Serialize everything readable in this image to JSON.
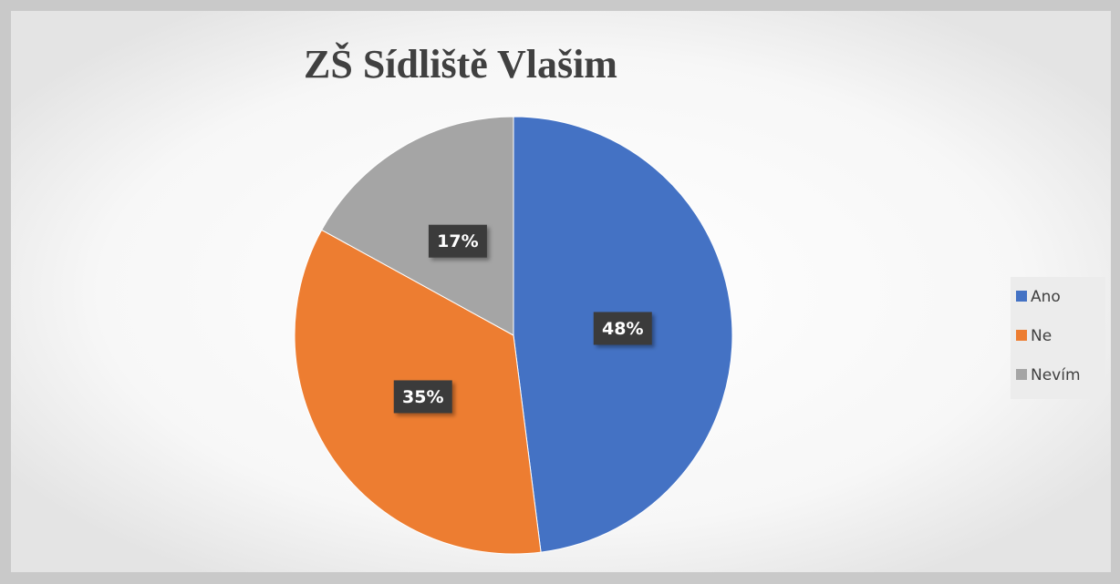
{
  "chart_data": {
    "type": "pie",
    "title": "ZŠ Sídliště Vlašim",
    "categories": [
      "Ano",
      "Ne",
      "Nevím"
    ],
    "values": [
      48,
      35,
      17
    ],
    "value_labels": [
      "48%",
      "35%",
      "17%"
    ],
    "colors": [
      "#4472c4",
      "#ed7d31",
      "#a5a5a5"
    ],
    "legend": "right"
  }
}
